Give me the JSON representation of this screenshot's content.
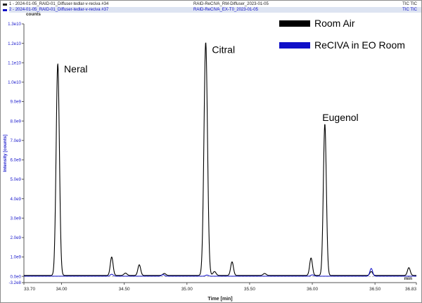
{
  "header": {
    "run1": {
      "index": "1 -",
      "file": "2024-01-05_RAID-01_Diffuser-tedlar-v-reciva #34",
      "title": "RAID-ReCIVA_RM-Diffuser_2023-01-05",
      "signal": "TIC TIC",
      "color": "#222222"
    },
    "run2": {
      "index": "2 -",
      "file": "2024-01-05_RAID-01_Diffuser-tedlar-v-reciva #37",
      "title": "RAID-ReCIVA_EX-T0_2023-01-05",
      "signal": "TIC TIC",
      "color": "#1010c8"
    }
  },
  "chart_data": {
    "type": "line",
    "xlabel": "Time [min]",
    "ylabel": "Intensity [counts]",
    "y_units": "counts",
    "x_unit_label": "min",
    "xlim": [
      33.7,
      36.83
    ],
    "ylim": [
      -320000000.0,
      13000000000.0
    ],
    "x_ticks": [
      {
        "value": 33.7,
        "label": "33.70"
      },
      {
        "value": 34.0,
        "label": "34.00"
      },
      {
        "value": 34.5,
        "label": "34.50"
      },
      {
        "value": 35.0,
        "label": "35.00"
      },
      {
        "value": 35.5,
        "label": "35.50"
      },
      {
        "value": 36.0,
        "label": "36.00"
      },
      {
        "value": 36.5,
        "label": "36.50"
      },
      {
        "value": 36.83,
        "label": "36.83"
      }
    ],
    "y_ticks": [
      {
        "value": 13000000000.0,
        "label": "1.3e10"
      },
      {
        "value": 12000000000.0,
        "label": "1.2e10"
      },
      {
        "value": 11000000000.0,
        "label": "1.1e10"
      },
      {
        "value": 10000000000.0,
        "label": "1.0e10"
      },
      {
        "value": 9000000000.0,
        "label": "9.0e9"
      },
      {
        "value": 8000000000.0,
        "label": "8.0e9"
      },
      {
        "value": 7000000000.0,
        "label": "7.0e9"
      },
      {
        "value": 6000000000.0,
        "label": "6.0e9"
      },
      {
        "value": 5000000000.0,
        "label": "5.0e9"
      },
      {
        "value": 4000000000.0,
        "label": "4.0e9"
      },
      {
        "value": 3000000000.0,
        "label": "3.0e9"
      },
      {
        "value": 2000000000.0,
        "label": "2.0e9"
      },
      {
        "value": 1000000000.0,
        "label": "1.0e9"
      },
      {
        "value": 0.0,
        "label": "0.0e0"
      },
      {
        "value": -320000000.0,
        "label": "-3.2e8"
      }
    ],
    "series": [
      {
        "name": "Room Air",
        "color": "#000000",
        "baseline": 50000000.0,
        "peaks": [
          {
            "rt": 33.97,
            "height": 10900000000.0,
            "width": 0.013
          },
          {
            "rt": 34.4,
            "height": 950000000.0,
            "width": 0.011
          },
          {
            "rt": 34.51,
            "height": 120000000.0,
            "width": 0.012
          },
          {
            "rt": 34.62,
            "height": 550000000.0,
            "width": 0.011
          },
          {
            "rt": 34.82,
            "height": 100000000.0,
            "width": 0.012
          },
          {
            "rt": 35.15,
            "height": 12000000000.0,
            "width": 0.014
          },
          {
            "rt": 35.22,
            "height": 200000000.0,
            "width": 0.012
          },
          {
            "rt": 35.36,
            "height": 700000000.0,
            "width": 0.011
          },
          {
            "rt": 35.62,
            "height": 100000000.0,
            "width": 0.012
          },
          {
            "rt": 35.99,
            "height": 900000000.0,
            "width": 0.011
          },
          {
            "rt": 36.1,
            "height": 7800000000.0,
            "width": 0.012
          },
          {
            "rt": 36.47,
            "height": 200000000.0,
            "width": 0.011
          },
          {
            "rt": 36.77,
            "height": 400000000.0,
            "width": 0.011
          }
        ]
      },
      {
        "name": "ReCIVA in EO Room",
        "color": "#1010c8",
        "baseline": 10000000.0,
        "peaks": [
          {
            "rt": 34.4,
            "height": 100000000.0,
            "width": 0.012
          },
          {
            "rt": 34.81,
            "height": 80000000.0,
            "width": 0.012
          },
          {
            "rt": 35.16,
            "height": 60000000.0,
            "width": 0.012
          },
          {
            "rt": 36.0,
            "height": 70000000.0,
            "width": 0.012
          },
          {
            "rt": 36.47,
            "height": 400000000.0,
            "width": 0.011
          }
        ]
      }
    ],
    "annotations": [
      {
        "text": "Neral",
        "x": 34.02,
        "y": 10500000000.0
      },
      {
        "text": "Citral",
        "x": 35.2,
        "y": 11500000000.0
      },
      {
        "text": "Eugenol",
        "x": 36.08,
        "y": 8000000000.0
      }
    ],
    "legend": {
      "position": "top-right"
    }
  }
}
